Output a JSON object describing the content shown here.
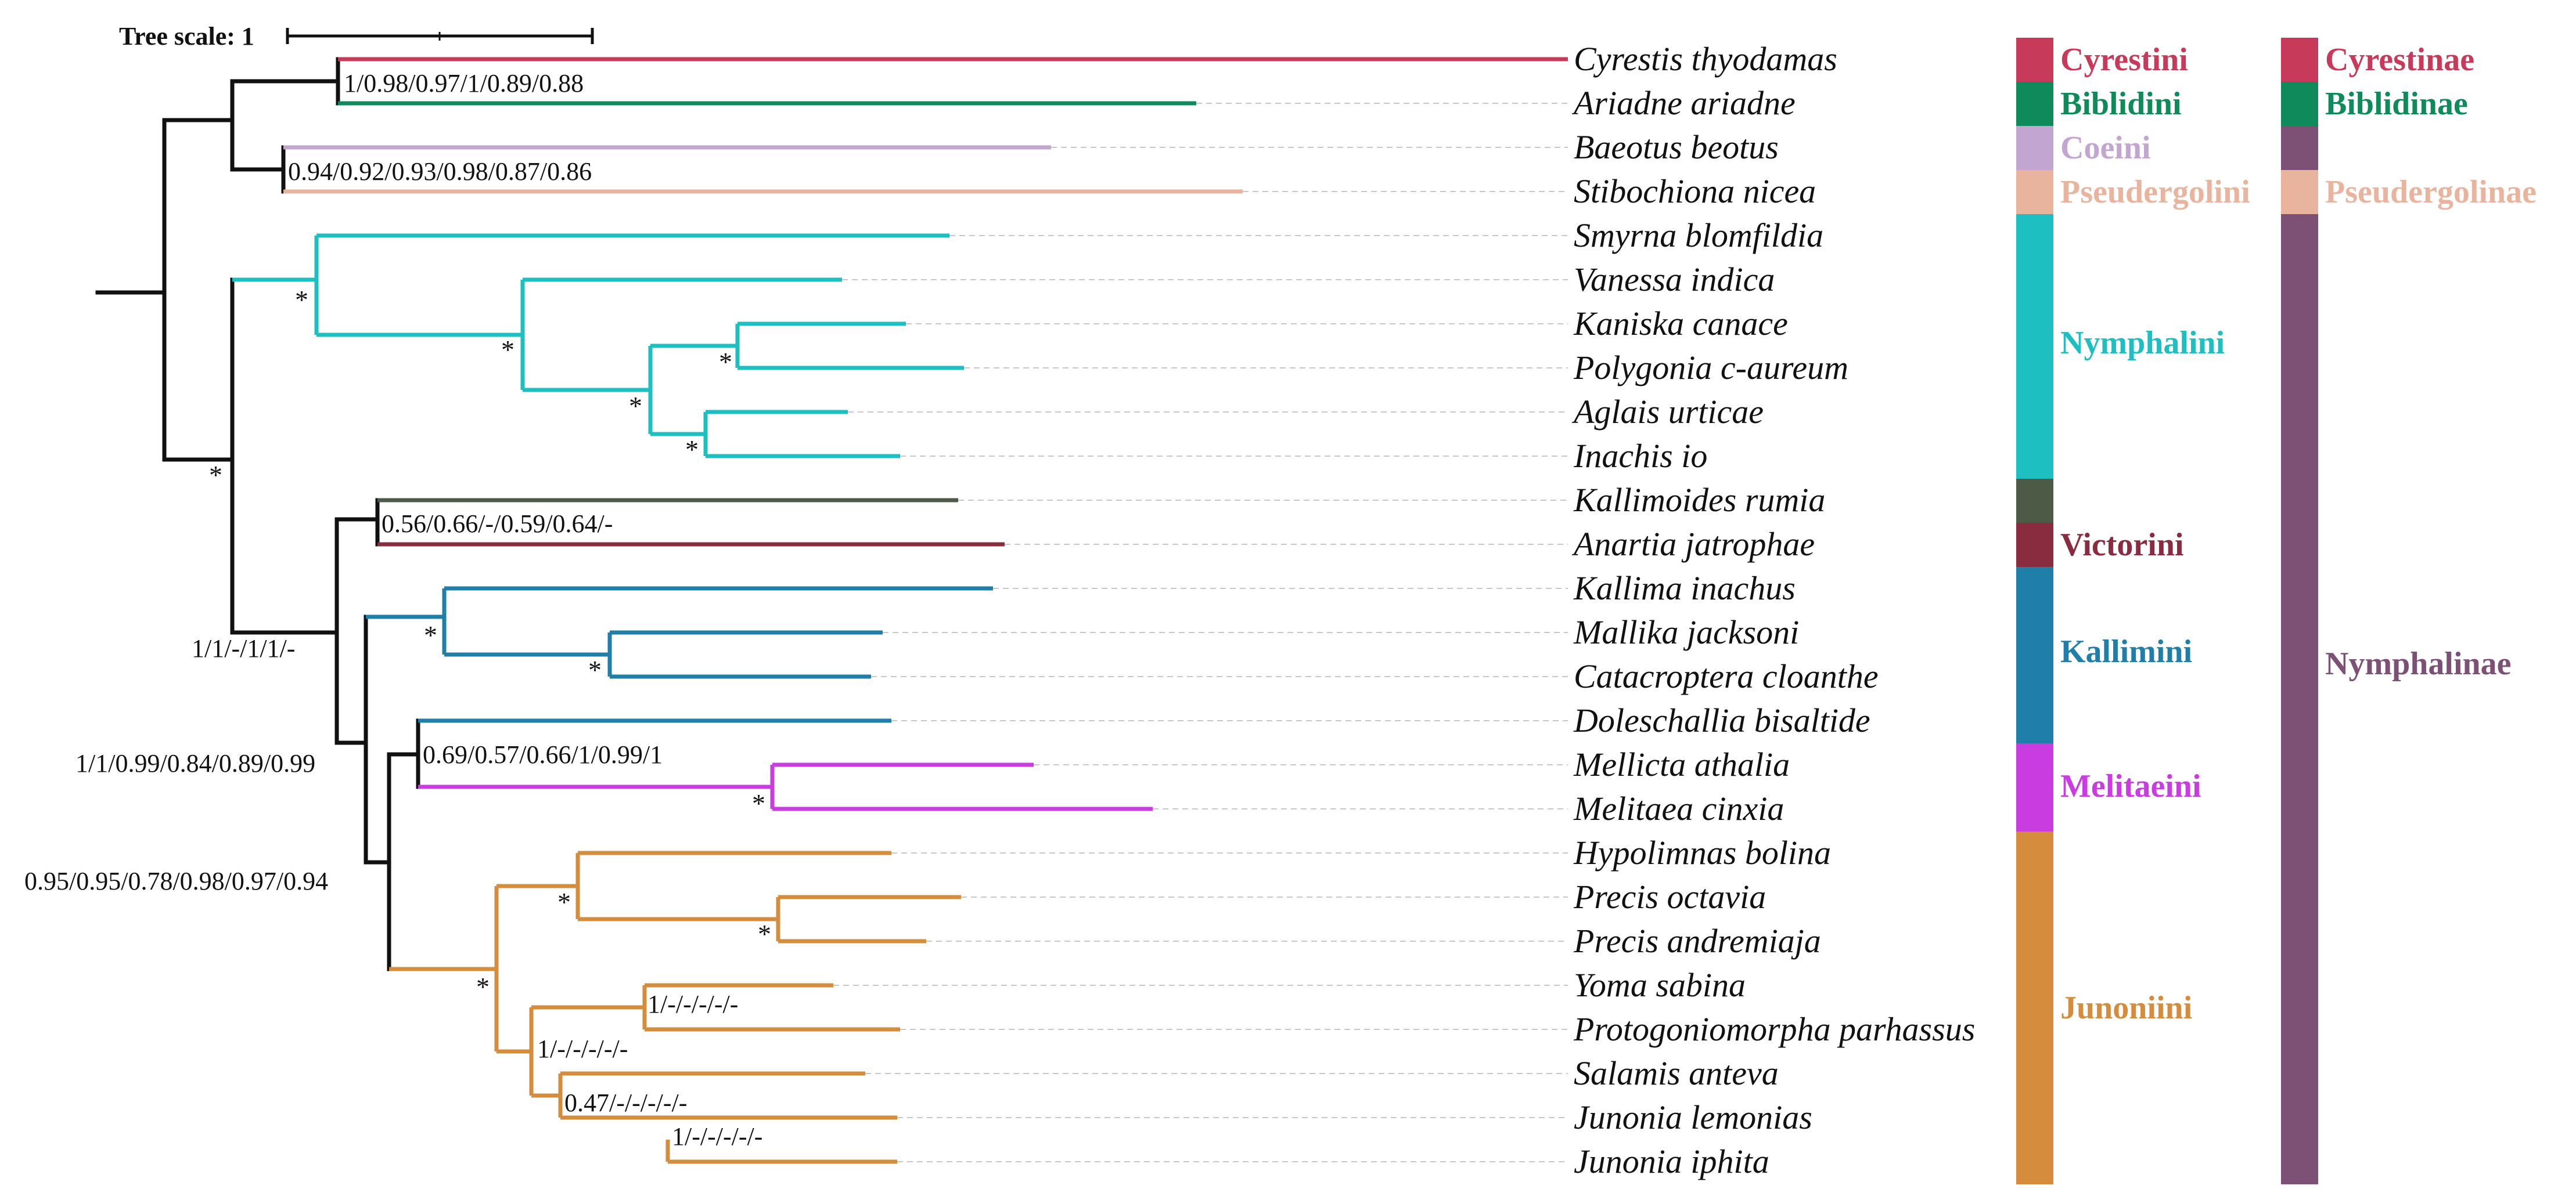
{
  "scale": {
    "label": "Tree scale: 1"
  },
  "colors": {
    "black": "#111111",
    "cyrestini": "#c83a5a",
    "biblidini": "#0f8a5a",
    "coeini": "#c3a5d2",
    "pseudergolini": "#e9b49d",
    "nymphalini": "#1ebfc0",
    "kallimoides": "#4c5a46",
    "victorini": "#8a2c40",
    "kallimini": "#1f7fa8",
    "melitaeini": "#c93ce0",
    "junoniini": "#d58d3d",
    "nymphalinae": "#7d5076"
  },
  "taxa": [
    "Cyrestis thyodamas",
    "Ariadne ariadne",
    "Baeotus beotus",
    "Stibochiona nicea",
    "Smyrna blomfildia",
    "Vanessa indica",
    "Kaniska canace",
    "Polygonia c-aureum",
    "Aglais urticae",
    "Inachis io",
    "Kallimoides rumia",
    "Anartia jatrophae",
    "Kallima inachus",
    "Mallika jacksoni",
    "Catacroptera cloanthe",
    "Doleschallia bisaltide",
    "Mellicta athalia",
    "Melitaea cinxia",
    "Hypolimnas bolina",
    "Precis octavia",
    "Precis andremiaja",
    "Yoma sabina",
    "Protogoniomorpha parhassus",
    "Salamis anteva",
    "Junonia lemonias",
    "Junonia iphita"
  ],
  "supports": {
    "cyr_arg": "1/0.98/0.97/1/0.89/0.88",
    "coe_pse": "0.94/0.92/0.93/0.98/0.87/0.86",
    "kall_vic": "0.56/0.66/-/0.59/0.64/-",
    "rest_core": "1/1/-/1/1/-",
    "kallimini_rest": "1/1/0.99/0.84/0.89/0.99",
    "melit_junon": "0.95/0.95/0.78/0.98/0.97/0.94",
    "dol_mel": "0.69/0.57/0.66/1/0.99/1",
    "yoma": "1/-/-/-/-/-",
    "yoma_sal": "1/-/-/-/-/-",
    "sal_jun": "0.47/-/-/-/-/-",
    "junonia": "1/-/-/-/-/-",
    "star": "*"
  },
  "tribes": [
    {
      "name": "Cyrestini",
      "color": "#c83a5a"
    },
    {
      "name": "Biblidini",
      "color": "#0f8a5a"
    },
    {
      "name": "Coeini",
      "color": "#c3a5d2"
    },
    {
      "name": "Pseudergolini",
      "color": "#e9b49d"
    },
    {
      "name": "Nymphalini",
      "color": "#1ebfc0"
    },
    {
      "name": "Victorini",
      "color": "#8a2c40"
    },
    {
      "name": "Kallimini",
      "color": "#1f7fa8"
    },
    {
      "name": "Melitaeini",
      "color": "#c93ce0"
    },
    {
      "name": "Junoniini",
      "color": "#d58d3d"
    }
  ],
  "subfamilies": [
    {
      "name": "Cyrestinae",
      "color": "#c83a5a"
    },
    {
      "name": "Biblidinae",
      "color": "#0f8a5a"
    },
    {
      "name": "Pseudergolinae",
      "color": "#e9b49d"
    },
    {
      "name": "Nymphalinae",
      "color": "#7d5076"
    }
  ]
}
